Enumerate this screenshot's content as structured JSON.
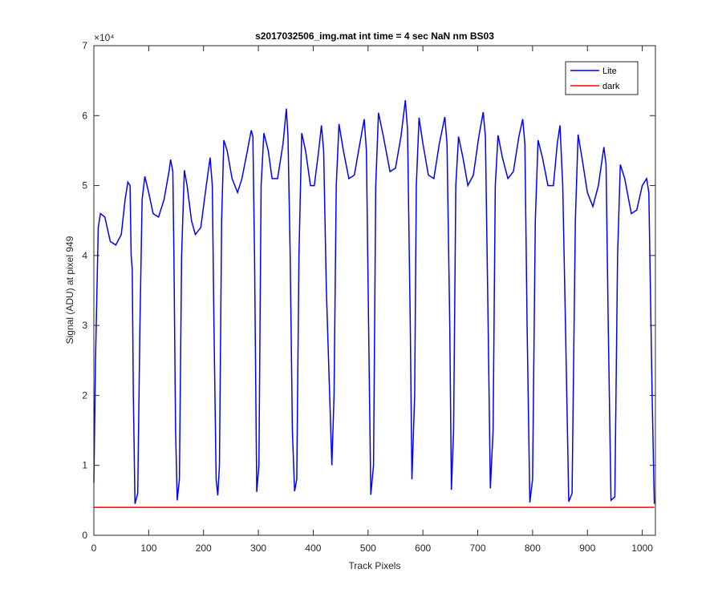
{
  "chart_data": {
    "type": "line",
    "title": "s2017032506_img.mat int time = 4 sec  NaN nm BS03",
    "xlabel": "Track Pixels",
    "ylabel": "Signal (ADU) at pixel 949",
    "y_multiplier": "×10⁴",
    "xlim": [
      0,
      1024
    ],
    "ylim": [
      0,
      70000
    ],
    "xticks": [
      0,
      100,
      200,
      300,
      400,
      500,
      600,
      700,
      800,
      900,
      1000
    ],
    "yticks": [
      {
        "value": 0,
        "label": "0"
      },
      {
        "value": 10000,
        "label": "1"
      },
      {
        "value": 20000,
        "label": "2"
      },
      {
        "value": 30000,
        "label": "3"
      },
      {
        "value": 40000,
        "label": "4"
      },
      {
        "value": 50000,
        "label": "5"
      },
      {
        "value": 60000,
        "label": "6"
      },
      {
        "value": 70000,
        "label": "7"
      }
    ],
    "legend": "upper right",
    "series": [
      {
        "name": "Lite",
        "color": "#0000ff",
        "x": [
          0,
          3,
          8,
          12,
          20,
          30,
          40,
          50,
          57,
          62,
          66,
          68,
          70,
          72,
          75,
          80,
          84,
          88,
          93,
          100,
          108,
          118,
          128,
          137,
          140,
          144,
          146,
          149,
          152,
          156,
          160,
          165,
          170,
          178,
          185,
          195,
          205,
          212,
          216,
          219,
          223,
          226,
          229,
          233,
          237,
          243,
          252,
          262,
          270,
          280,
          287,
          290,
          293,
          297,
          301,
          305,
          310,
          318,
          325,
          335,
          345,
          351,
          354,
          358,
          362,
          366,
          370,
          374,
          379,
          386,
          395,
          402,
          410,
          415,
          419,
          424,
          430,
          434,
          438,
          442,
          447,
          455,
          465,
          475,
          485,
          493,
          497,
          501,
          505,
          510,
          514,
          519,
          528,
          540,
          550,
          560,
          568,
          572,
          577,
          580,
          585,
          588,
          593,
          600,
          610,
          620,
          630,
          640,
          644,
          649,
          652,
          656,
          660,
          665,
          673,
          682,
          692,
          702,
          710,
          714,
          719,
          723,
          728,
          732,
          737,
          745,
          755,
          765,
          775,
          782,
          786,
          790,
          795,
          800,
          805,
          810,
          818,
          828,
          838,
          845,
          850,
          855,
          860,
          866,
          872,
          878,
          883,
          890,
          900,
          910,
          920,
          930,
          934,
          938,
          943,
          950,
          955,
          960,
          968,
          980,
          990,
          1000,
          1008,
          1012,
          1018,
          1022
        ],
        "values": [
          7500,
          25000,
          44000,
          46000,
          45500,
          42000,
          41500,
          43000,
          48000,
          50500,
          50000,
          40000,
          38000,
          20000,
          4500,
          6000,
          30000,
          48000,
          51300,
          49000,
          46000,
          45500,
          48000,
          52000,
          53700,
          52000,
          40000,
          15000,
          5000,
          8000,
          40000,
          52200,
          50000,
          45000,
          43000,
          44000,
          50000,
          54000,
          50000,
          30000,
          8000,
          5700,
          10000,
          45000,
          56500,
          55000,
          51000,
          49000,
          51000,
          55000,
          57900,
          57000,
          40000,
          6200,
          10000,
          50000,
          57500,
          55000,
          51000,
          51000,
          56000,
          61000,
          57000,
          40000,
          15000,
          6300,
          8000,
          40000,
          57500,
          55000,
          50000,
          50000,
          55000,
          58600,
          55000,
          35000,
          20000,
          10000,
          20000,
          50000,
          58800,
          55000,
          51000,
          51500,
          56000,
          59500,
          55000,
          30000,
          5800,
          10000,
          50000,
          60400,
          57000,
          52000,
          52500,
          57000,
          62200,
          58000,
          30000,
          8000,
          20000,
          50000,
          59700,
          56000,
          51500,
          51000,
          56000,
          59800,
          56000,
          30000,
          6500,
          15000,
          50000,
          57000,
          54000,
          50000,
          51500,
          57000,
          60500,
          57000,
          30000,
          6700,
          15000,
          50000,
          57200,
          54000,
          51000,
          52000,
          57000,
          59500,
          56000,
          30000,
          4700,
          8000,
          45000,
          56500,
          54000,
          50000,
          50000,
          56000,
          58600,
          50000,
          30000,
          4800,
          6000,
          45000,
          57300,
          54000,
          49000,
          47000,
          50000,
          55500,
          53000,
          30000,
          5000,
          5500,
          40000,
          53000,
          51000,
          46000,
          46500,
          50000,
          51000,
          49000,
          20000,
          4500
        ]
      },
      {
        "name": "dark",
        "color": "#ff0000",
        "x": [
          0,
          1022
        ],
        "values": [
          4000,
          4000
        ]
      }
    ]
  }
}
